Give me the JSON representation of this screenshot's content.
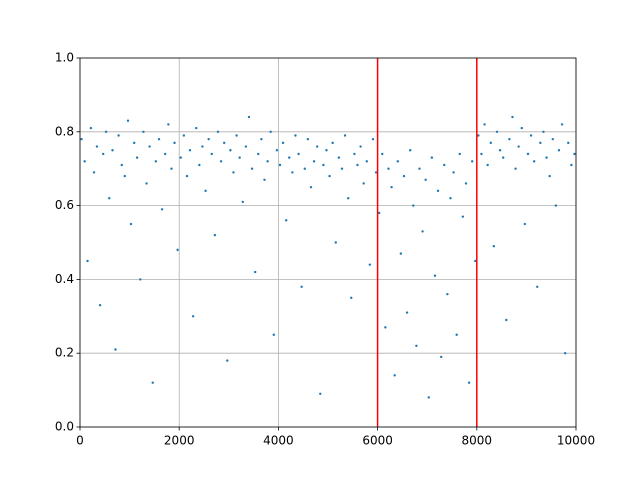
{
  "chart_data": {
    "type": "scatter",
    "x": [
      31,
      94,
      152,
      219,
      283,
      341,
      405,
      468,
      527,
      590,
      655,
      716,
      778,
      842,
      903,
      968,
      1027,
      1093,
      1151,
      1216,
      1279,
      1342,
      1404,
      1466,
      1529,
      1593,
      1655,
      1717,
      1781,
      1844,
      1906,
      1968,
      2031,
      2094,
      2157,
      2218,
      2281,
      2344,
      2406,
      2469,
      2532,
      2594,
      2657,
      2719,
      2782,
      2844,
      2907,
      2969,
      3032,
      3094,
      3157,
      3219,
      3282,
      3344,
      3407,
      3469,
      3532,
      3594,
      3657,
      3719,
      3782,
      3844,
      3907,
      3969,
      4032,
      4094,
      4157,
      4219,
      4282,
      4344,
      4407,
      4469,
      4532,
      4594,
      4657,
      4719,
      4782,
      4844,
      4907,
      4969,
      5032,
      5094,
      5157,
      5219,
      5282,
      5344,
      5407,
      5469,
      5532,
      5594,
      5657,
      5719,
      5782,
      5844,
      5907,
      5969,
      6032,
      6094,
      6157,
      6219,
      6282,
      6344,
      6407,
      6469,
      6532,
      6594,
      6657,
      6719,
      6782,
      6844,
      6907,
      6969,
      7032,
      7094,
      7157,
      7219,
      7282,
      7344,
      7407,
      7469,
      7532,
      7594,
      7657,
      7719,
      7782,
      7844,
      7907,
      7969,
      8032,
      8094,
      8157,
      8219,
      8282,
      8344,
      8407,
      8469,
      8532,
      8594,
      8657,
      8719,
      8782,
      8844,
      8907,
      8969,
      9032,
      9094,
      9157,
      9219,
      9282,
      9344,
      9407,
      9469,
      9532,
      9594,
      9657,
      9719,
      9782,
      9844,
      9907,
      9969
    ],
    "values": [
      0.78,
      0.72,
      0.45,
      0.81,
      0.69,
      0.76,
      0.33,
      0.74,
      0.8,
      0.62,
      0.75,
      0.21,
      0.79,
      0.71,
      0.68,
      0.83,
      0.55,
      0.77,
      0.73,
      0.4,
      0.8,
      0.66,
      0.76,
      0.12,
      0.72,
      0.78,
      0.59,
      0.74,
      0.82,
      0.7,
      0.77,
      0.48,
      0.73,
      0.79,
      0.68,
      0.75,
      0.3,
      0.81,
      0.71,
      0.76,
      0.64,
      0.78,
      0.74,
      0.52,
      0.8,
      0.72,
      0.77,
      0.18,
      0.75,
      0.69,
      0.79,
      0.73,
      0.61,
      0.76,
      0.84,
      0.7,
      0.42,
      0.74,
      0.78,
      0.67,
      0.72,
      0.8,
      0.25,
      0.75,
      0.71,
      0.77,
      0.56,
      0.73,
      0.69,
      0.79,
      0.74,
      0.38,
      0.7,
      0.78,
      0.65,
      0.72,
      0.76,
      0.09,
      0.71,
      0.75,
      0.68,
      0.77,
      0.5,
      0.73,
      0.7,
      0.79,
      0.62,
      0.35,
      0.74,
      0.71,
      0.76,
      0.66,
      0.72,
      0.44,
      0.78,
      0.69,
      0.58,
      0.74,
      0.27,
      0.7,
      0.65,
      0.14,
      0.72,
      0.47,
      0.68,
      0.31,
      0.75,
      0.6,
      0.22,
      0.7,
      0.53,
      0.67,
      0.08,
      0.73,
      0.41,
      0.64,
      0.19,
      0.71,
      0.36,
      0.62,
      0.69,
      0.25,
      0.74,
      0.57,
      0.66,
      0.12,
      0.72,
      0.45,
      0.79,
      0.74,
      0.82,
      0.71,
      0.77,
      0.49,
      0.8,
      0.75,
      0.73,
      0.29,
      0.78,
      0.84,
      0.7,
      0.76,
      0.81,
      0.55,
      0.74,
      0.79,
      0.72,
      0.38,
      0.77,
      0.8,
      0.73,
      0.68,
      0.78,
      0.6,
      0.75,
      0.82,
      0.2,
      0.77,
      0.71,
      0.74
    ],
    "color": "#1f77b4",
    "vlines": [
      6000,
      8000
    ],
    "vline_color": "#ff0000",
    "xlim": [
      0,
      10000
    ],
    "xticks": [
      0,
      2000,
      4000,
      6000,
      8000,
      10000
    ],
    "ylim": [
      0,
      1
    ],
    "yticks": [
      {
        "value": 0,
        "label": "0.0"
      },
      0.2,
      0.4,
      0.6,
      0.8,
      {
        "value": 1,
        "label": "1.0"
      }
    ],
    "grid": true
  }
}
